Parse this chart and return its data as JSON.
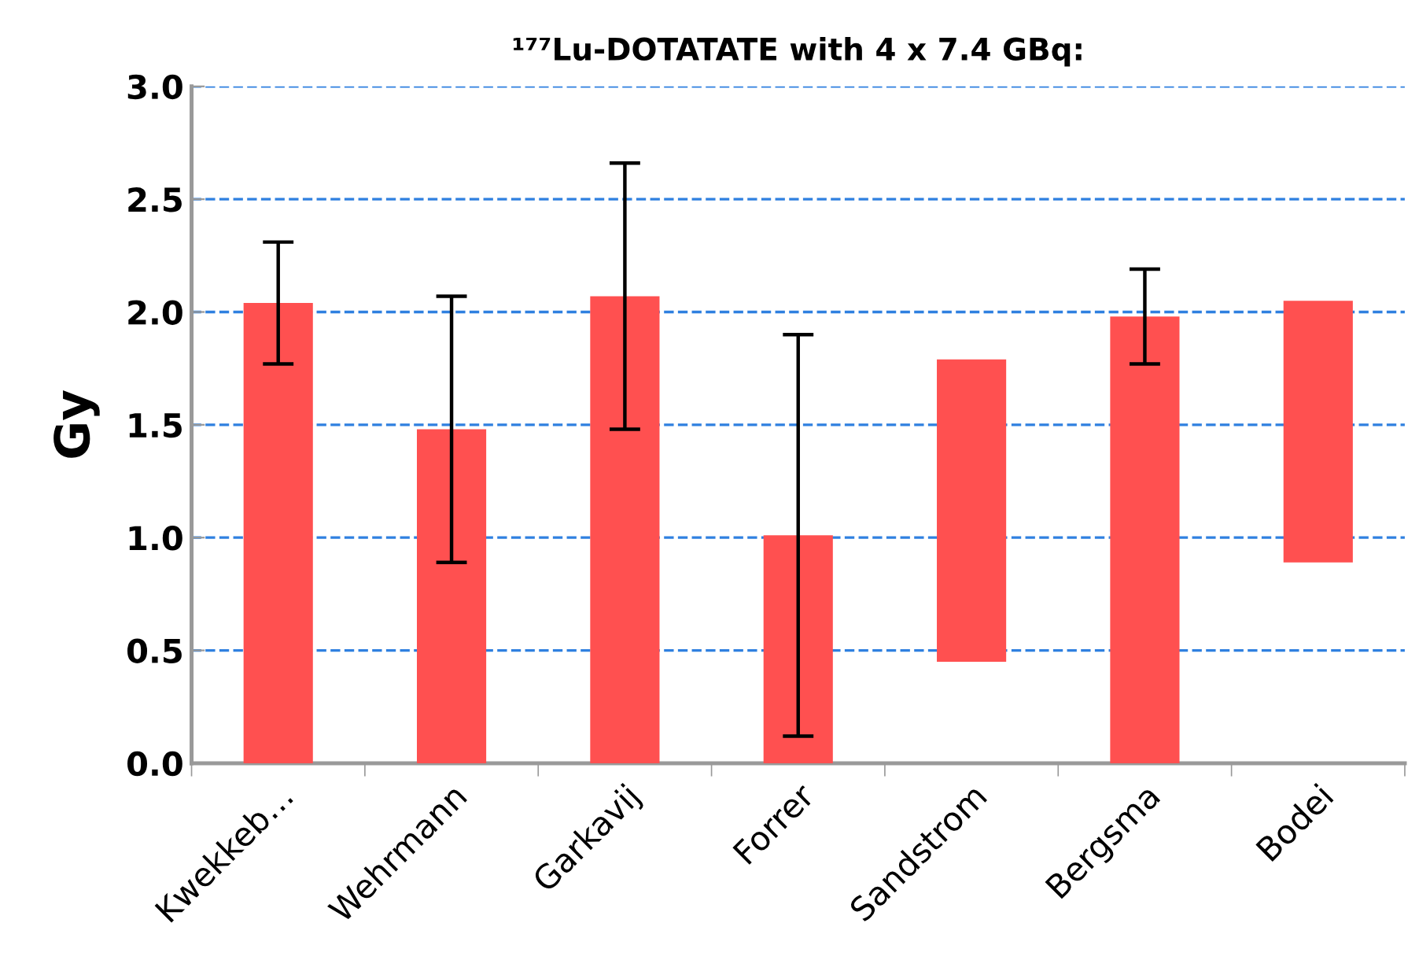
{
  "chart_data": {
    "type": "bar",
    "title": "¹⁷⁷Lu-DOTATATE with 4 x 7.4 GBq:",
    "ylabel": "Gy",
    "categories": [
      "Kwekkeb…",
      "Wehrmann",
      "Garkavij",
      "Forrer",
      "Sandstrom",
      "Bergsma",
      "Bodei"
    ],
    "values": [
      2.04,
      1.48,
      2.07,
      1.01,
      1.34,
      1.98,
      1.16
    ],
    "base": [
      0,
      0,
      0,
      0,
      0.45,
      0,
      0.89
    ],
    "errors": [
      0.27,
      0.59,
      0.59,
      0.89,
      null,
      0.21,
      null
    ],
    "color": "#ff5050",
    "ylim": [
      0,
      3.0
    ],
    "yticks": [
      {
        "value": 0,
        "label": "0.0"
      },
      {
        "value": 0.5,
        "label": "0.5"
      },
      {
        "value": 1,
        "label": "1.0"
      },
      {
        "value": 1.5,
        "label": "1.5"
      },
      {
        "value": 2,
        "label": "2.0"
      },
      {
        "value": 2.5,
        "label": "2.5"
      },
      {
        "value": 3,
        "label": "3.0"
      }
    ],
    "grid": "y"
  }
}
